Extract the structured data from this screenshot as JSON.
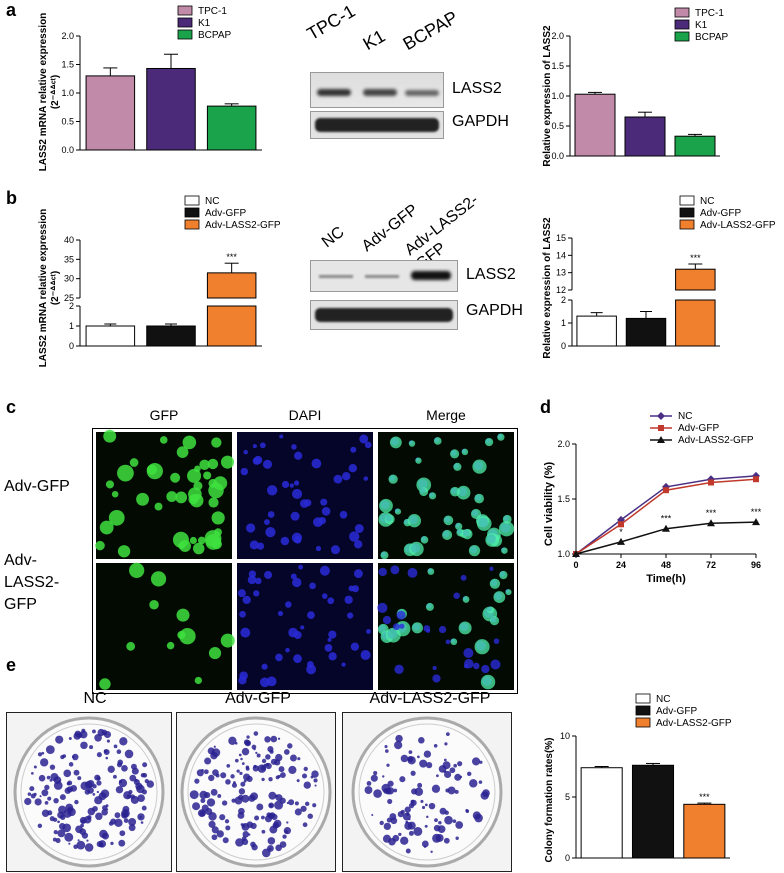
{
  "panels": {
    "a": "a",
    "b": "b",
    "c": "c",
    "d": "d",
    "e": "e"
  },
  "colors": {
    "tpc1": "#c08aa8",
    "k1": "#4b2a7a",
    "bcpap": "#1aa34a",
    "nc": "#ffffff",
    "advgfp": "#111111",
    "advlass2": "#f07f2e"
  },
  "chart_data": [
    {
      "id": "a-left",
      "type": "bar",
      "categories": [
        "TPC-1",
        "K1",
        "BCPAP"
      ],
      "values": [
        1.3,
        1.43,
        0.77
      ],
      "errors": [
        0.14,
        0.25,
        0.04
      ],
      "ylabel_line1": "LASS2 mRNA relative expression",
      "ylabel_line2": "(2⁻ᐞᐞᶜᵗ)",
      "ylim": [
        0,
        2.0
      ],
      "yticks": [
        "0.0",
        "0.5",
        "1.0",
        "1.5",
        "2.0"
      ],
      "legend": [
        "TPC-1",
        "K1",
        "BCPAP"
      ]
    },
    {
      "id": "a-right",
      "type": "bar",
      "categories": [
        "TPC-1",
        "K1",
        "BCPAP"
      ],
      "values": [
        1.03,
        0.65,
        0.33
      ],
      "errors": [
        0.03,
        0.08,
        0.03
      ],
      "ylabel": "Relative expression of LASS2",
      "ylim": [
        0,
        2.0
      ],
      "yticks": [
        "0.0",
        "0.5",
        "1.0",
        "1.5",
        "2.0"
      ],
      "legend": [
        "TPC-1",
        "K1",
        "BCPAP"
      ]
    },
    {
      "id": "b-left",
      "type": "bar",
      "categories": [
        "NC",
        "Adv-GFP",
        "Adv-LASS2-GFP"
      ],
      "values": [
        1.0,
        1.0,
        31.5
      ],
      "errors": [
        0.1,
        0.1,
        2.5
      ],
      "ylabel_line1": "LASS2 mRNA relative expression",
      "ylabel_line2": "(2⁻ᐞᐞᶜᵗ)",
      "axis_break": true,
      "lower_ylim": [
        0,
        2
      ],
      "lower_yticks": [
        "0",
        "1",
        "2"
      ],
      "upper_ylim": [
        25,
        40
      ],
      "upper_yticks": [
        "25",
        "30",
        "35",
        "40"
      ],
      "significance": [
        "",
        "",
        "***"
      ],
      "legend": [
        "NC",
        "Adv-GFP",
        "Adv-LASS2-GFP"
      ]
    },
    {
      "id": "b-right",
      "type": "bar",
      "categories": [
        "NC",
        "Adv-GFP",
        "Adv-LASS2-GFP"
      ],
      "values": [
        1.3,
        1.2,
        13.2
      ],
      "errors": [
        0.15,
        0.3,
        0.3
      ],
      "ylabel": "Relative expression of LASS2",
      "axis_break": true,
      "lower_ylim": [
        0,
        2
      ],
      "lower_yticks": [
        "0",
        "1",
        "2"
      ],
      "upper_ylim": [
        12,
        15
      ],
      "upper_yticks": [
        "12",
        "13",
        "14",
        "15"
      ],
      "significance": [
        "",
        "",
        "***"
      ],
      "legend": [
        "NC",
        "Adv-GFP",
        "Adv-LASS2-GFP"
      ]
    },
    {
      "id": "d",
      "type": "line",
      "x": [
        0,
        24,
        48,
        72,
        96
      ],
      "series": [
        {
          "name": "NC",
          "color": "#4a2f85",
          "marker": "diamond",
          "values": [
            1.0,
            1.31,
            1.61,
            1.68,
            1.71
          ]
        },
        {
          "name": "Adv-GFP",
          "color": "#c0392b",
          "marker": "square",
          "values": [
            1.0,
            1.27,
            1.58,
            1.65,
            1.68
          ]
        },
        {
          "name": "Adv-LASS2-GFP",
          "color": "#111111",
          "marker": "triangle",
          "values": [
            1.0,
            1.11,
            1.23,
            1.28,
            1.29
          ]
        }
      ],
      "significance": [
        "",
        "*",
        "***",
        "***",
        "***"
      ],
      "xlabel": "Time(h)",
      "ylabel": "Cell viability (%)",
      "xticks": [
        "0",
        "24",
        "48",
        "72",
        "96"
      ],
      "ylim": [
        1.0,
        2.0
      ],
      "yticks": [
        "1.0",
        "1.5",
        "2.0"
      ]
    },
    {
      "id": "e",
      "type": "bar",
      "categories": [
        "NC",
        "Adv-GFP",
        "Adv-LASS2-GFP"
      ],
      "values": [
        7.4,
        7.6,
        4.4
      ],
      "errors": [
        0.1,
        0.15,
        0.1
      ],
      "ylabel": "Colony formation rates(%)",
      "ylim": [
        0,
        10
      ],
      "yticks": [
        "0",
        "5",
        "10"
      ],
      "significance": [
        "",
        "",
        "***"
      ],
      "legend": [
        "NC",
        "Adv-GFP",
        "Adv-LASS2-GFP"
      ]
    }
  ],
  "western_a": {
    "lanes": [
      "TPC-1",
      "K1",
      "BCPAP"
    ],
    "bands": [
      "LASS2",
      "GAPDH"
    ]
  },
  "western_b": {
    "lanes": [
      "NC",
      "Adv-GFP",
      "Adv-LASS2-GFP"
    ],
    "bands": [
      "LASS2",
      "GAPDH"
    ]
  },
  "microscopy": {
    "columns": [
      "GFP",
      "DAPI",
      "Merge"
    ],
    "rows": [
      "Adv-GFP",
      "Adv-LASS2-GFP"
    ]
  },
  "colony": {
    "labels": [
      "NC",
      "Adv-GFP",
      "Adv-LASS2-GFP"
    ]
  }
}
